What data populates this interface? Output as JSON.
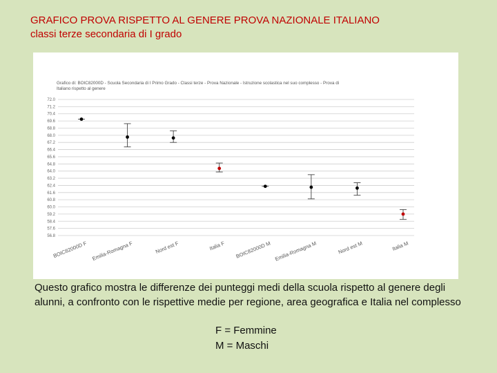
{
  "slide": {
    "title_line1": "GRAFICO PROVA RISPETTO AL GENERE PROVA NAZIONALE ITALIANO",
    "title_line2": "classi terze secondaria di I grado",
    "description": "Questo grafico mostra le differenze dei punteggi medi della scuola rispetto al genere degli alunni, a confronto con le rispettive medie per regione, area geografica e Italia nel complesso",
    "legend_f": "F = Femmine",
    "legend_m": "M = Maschi",
    "colors": {
      "background": "#d7e4bd",
      "title": "#c00000"
    }
  },
  "chart_data": {
    "type": "scatter",
    "caption_line1": "Grafico di: BOIC82000D - Scuola Secondaria di I Primo Grado - Classi terze - Prova Nazionale - Istruzione scolastica nel suo complesso - Prova di",
    "caption_line2": "Italiano rispetto al genere",
    "yticks": [
      "72.0",
      "71.2",
      "70.4",
      "69.6",
      "68.8",
      "68.0",
      "67.2",
      "66.4",
      "65.6",
      "64.8",
      "64.0",
      "63.2",
      "62.4",
      "61.6",
      "60.8",
      "60.0",
      "59.2",
      "58.4",
      "57.6",
      "56.8"
    ],
    "ylim": [
      56.8,
      72.0
    ],
    "categories": [
      "BOIC82000D F",
      "Emilia-Romagna F",
      "Nord est F",
      "Italia F",
      "BOIC82000D M",
      "Emilia-Romagna M",
      "Nord est M",
      "Italia M"
    ],
    "values": [
      69.8,
      67.8,
      67.7,
      64.3,
      62.3,
      62.2,
      62.1,
      59.2
    ],
    "err_low": [
      69.8,
      66.7,
      67.2,
      63.9,
      62.3,
      60.9,
      61.3,
      58.6
    ],
    "err_high": [
      69.8,
      69.3,
      68.5,
      64.9,
      62.3,
      63.6,
      62.7,
      59.7
    ],
    "highlight": [
      false,
      false,
      false,
      true,
      false,
      false,
      false,
      true
    ],
    "point_color": "#000000",
    "highlight_color": "#c00000",
    "grid": true
  }
}
